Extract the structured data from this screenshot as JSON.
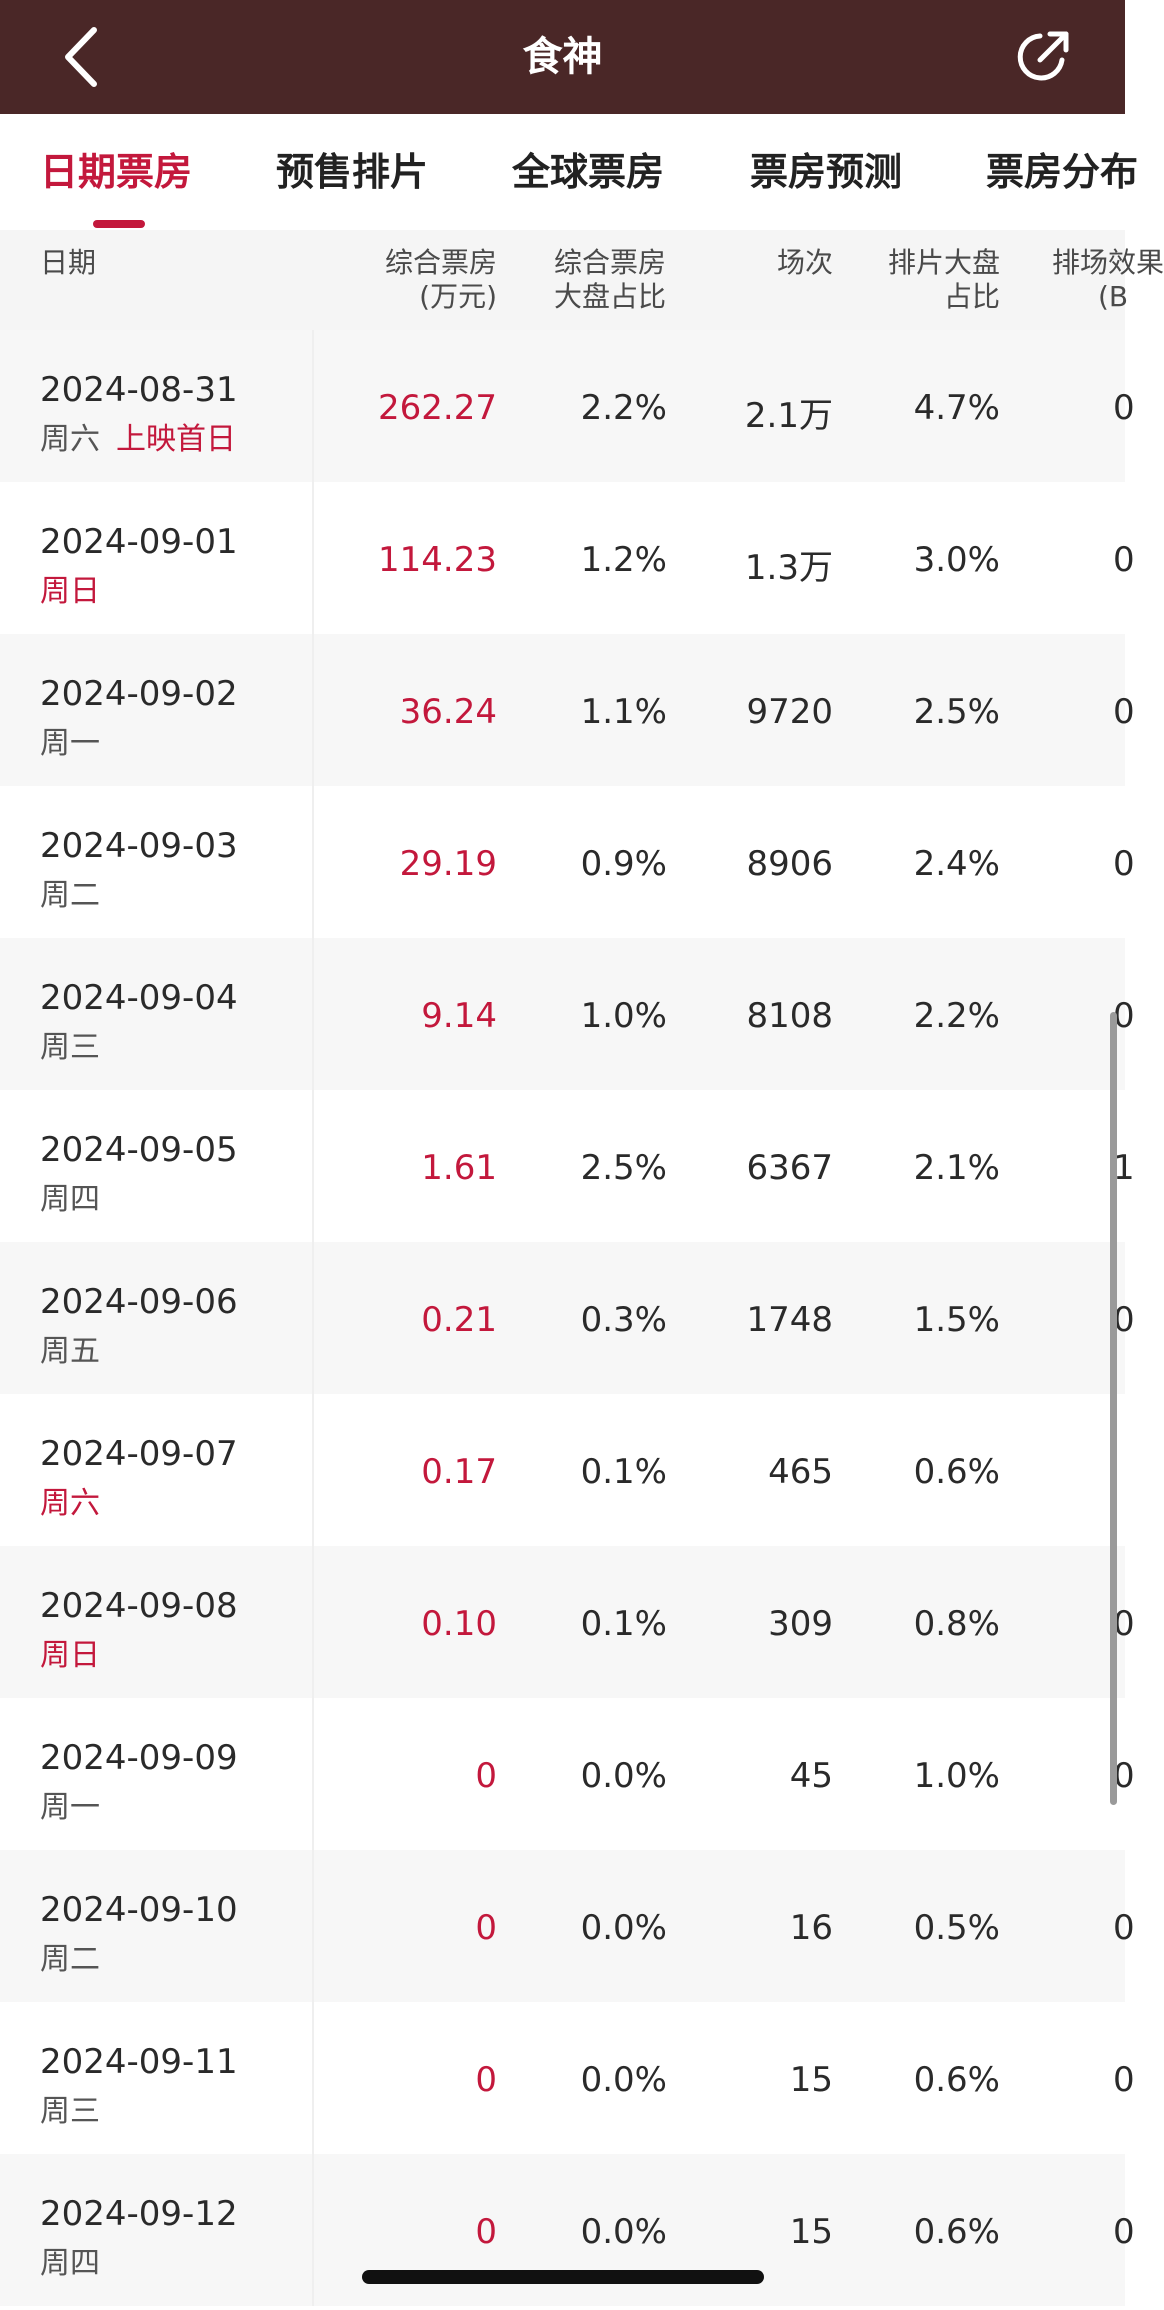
{
  "app": {
    "title": "食神",
    "back_icon": "chevron-left-icon",
    "share_icon": "share-arrow-icon",
    "colors": {
      "header_bg": "#4a2727",
      "accent": "#c3183c"
    }
  },
  "tabs": [
    {
      "label": "日期票房",
      "active": true
    },
    {
      "label": "预售排片",
      "active": false
    },
    {
      "label": "全球票房",
      "active": false
    },
    {
      "label": "票房预测",
      "active": false
    },
    {
      "label": "票房分布",
      "active": false
    }
  ],
  "columns": [
    {
      "line1": "日期",
      "line2": ""
    },
    {
      "line1": "综合票房",
      "line2": "(万元)"
    },
    {
      "line1": "综合票房",
      "line2": "大盘占比"
    },
    {
      "line1": "场次",
      "line2": ""
    },
    {
      "line1": "排片大盘",
      "line2": "占比"
    },
    {
      "line1": "排场效果",
      "line2": "(B"
    }
  ],
  "rows": [
    {
      "date": "2024-08-31",
      "weekday": "周六",
      "tag": "上映首日",
      "weekday_highlight": false,
      "box_office": "262.27",
      "share": "2.2%",
      "shows": "2.1万",
      "schedule_share": "4.7%",
      "partial": "0"
    },
    {
      "date": "2024-09-01",
      "weekday": "周日",
      "tag": "",
      "weekday_highlight": true,
      "box_office": "114.23",
      "share": "1.2%",
      "shows": "1.3万",
      "schedule_share": "3.0%",
      "partial": "0"
    },
    {
      "date": "2024-09-02",
      "weekday": "周一",
      "tag": "",
      "weekday_highlight": false,
      "box_office": "36.24",
      "share": "1.1%",
      "shows": "9720",
      "schedule_share": "2.5%",
      "partial": "0"
    },
    {
      "date": "2024-09-03",
      "weekday": "周二",
      "tag": "",
      "weekday_highlight": false,
      "box_office": "29.19",
      "share": "0.9%",
      "shows": "8906",
      "schedule_share": "2.4%",
      "partial": "0"
    },
    {
      "date": "2024-09-04",
      "weekday": "周三",
      "tag": "",
      "weekday_highlight": false,
      "box_office": "9.14",
      "share": "1.0%",
      "shows": "8108",
      "schedule_share": "2.2%",
      "partial": "0"
    },
    {
      "date": "2024-09-05",
      "weekday": "周四",
      "tag": "",
      "weekday_highlight": false,
      "box_office": "1.61",
      "share": "2.5%",
      "shows": "6367",
      "schedule_share": "2.1%",
      "partial": "1"
    },
    {
      "date": "2024-09-06",
      "weekday": "周五",
      "tag": "",
      "weekday_highlight": false,
      "box_office": "0.21",
      "share": "0.3%",
      "shows": "1748",
      "schedule_share": "1.5%",
      "partial": "0"
    },
    {
      "date": "2024-09-07",
      "weekday": "周六",
      "tag": "",
      "weekday_highlight": true,
      "box_office": "0.17",
      "share": "0.1%",
      "shows": "465",
      "schedule_share": "0.6%",
      "partial": ""
    },
    {
      "date": "2024-09-08",
      "weekday": "周日",
      "tag": "",
      "weekday_highlight": true,
      "box_office": "0.10",
      "share": "0.1%",
      "shows": "309",
      "schedule_share": "0.8%",
      "partial": "0"
    },
    {
      "date": "2024-09-09",
      "weekday": "周一",
      "tag": "",
      "weekday_highlight": false,
      "box_office": "0",
      "share": "0.0%",
      "shows": "45",
      "schedule_share": "1.0%",
      "partial": "0"
    },
    {
      "date": "2024-09-10",
      "weekday": "周二",
      "tag": "",
      "weekday_highlight": false,
      "box_office": "0",
      "share": "0.0%",
      "shows": "16",
      "schedule_share": "0.5%",
      "partial": "0"
    },
    {
      "date": "2024-09-11",
      "weekday": "周三",
      "tag": "",
      "weekday_highlight": false,
      "box_office": "0",
      "share": "0.0%",
      "shows": "15",
      "schedule_share": "0.6%",
      "partial": "0"
    },
    {
      "date": "2024-09-12",
      "weekday": "周四",
      "tag": "",
      "weekday_highlight": false,
      "box_office": "0",
      "share": "0.0%",
      "shows": "15",
      "schedule_share": "0.6%",
      "partial": "0"
    }
  ]
}
